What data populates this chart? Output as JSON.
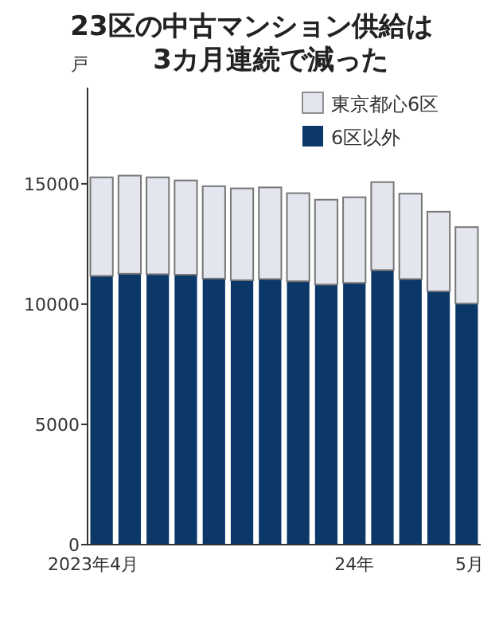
{
  "chart_data": {
    "type": "bar",
    "stacked": true,
    "title": "23区の中古マンション供給は\n3カ月連続で減った",
    "ylabel": "戸",
    "categories": [
      "2023年4月",
      null,
      null,
      null,
      null,
      null,
      null,
      null,
      null,
      "24年",
      null,
      null,
      null,
      "5月"
    ],
    "series": [
      {
        "name": "6区以外",
        "color": "#0b3868",
        "values": [
          11170,
          11260,
          11240,
          11220,
          11060,
          10990,
          11040,
          10950,
          10810,
          10880,
          11410,
          11040,
          10530,
          10020
        ]
      },
      {
        "name": "東京都心6区",
        "color": "#e3e6ee",
        "values": [
          4100,
          4080,
          4030,
          3920,
          3840,
          3820,
          3810,
          3660,
          3530,
          3560,
          3660,
          3550,
          3310,
          3180
        ]
      }
    ],
    "ylim": [
      0,
      19000
    ],
    "yticks": [
      0,
      5000,
      10000,
      15000
    ],
    "legend": "top right",
    "grid": false
  }
}
